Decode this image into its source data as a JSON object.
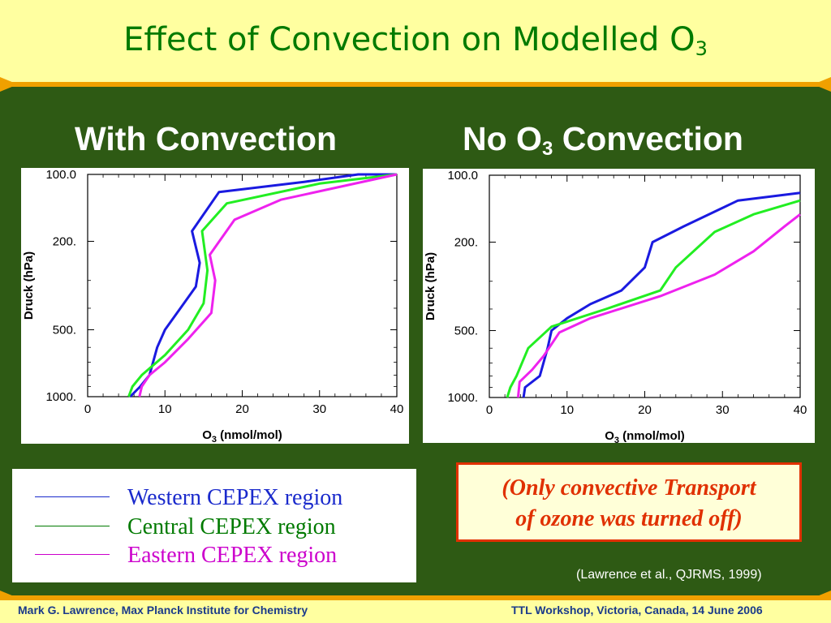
{
  "slide": {
    "title_main": "Effect of Convection on Modelled O",
    "title_sub": "3",
    "footer_left": "Mark G. Lawrence, Max Planck Institute for Chemistry",
    "footer_right": "TTL Workshop, Victoria, Canada, 14 June 2006",
    "citation": "(Lawrence et al., QJRMS, 1999)",
    "note_line1": "(Only convective Transport",
    "note_line2": "of ozone was turned off)"
  },
  "panels": {
    "left_title": "With Convection",
    "right_title_pre": "No O",
    "right_title_sub": "3",
    "right_title_post": " Convection"
  },
  "legend": {
    "items": [
      {
        "label": "Western CEPEX region",
        "color": "#1a2acc"
      },
      {
        "label": "Central CEPEX region",
        "color": "#007a00"
      },
      {
        "label": "Eastern CEPEX region",
        "color": "#cc00cc"
      }
    ]
  },
  "colors": {
    "western": "#1a1ae0",
    "central": "#22ee22",
    "eastern": "#ee22ee",
    "header_bg": "#ffffa0",
    "slide_bg": "#2e5a14",
    "accent": "#f0a000"
  },
  "chart_data": [
    {
      "type": "line",
      "title": "With Convection",
      "xlabel": "O3 (nmol/mol)",
      "ylabel": "Druck (hPa)",
      "xlim": [
        0,
        40
      ],
      "ylim": [
        1000,
        100
      ],
      "y_scale": "log",
      "x_ticks": [
        "0",
        "10",
        "20",
        "30",
        "40"
      ],
      "y_ticks": [
        "100.0",
        "200.",
        "500.",
        "1000."
      ],
      "series": [
        {
          "name": "Western CEPEX region",
          "color_key": "western",
          "points": [
            [
              5.5,
              1000
            ],
            [
              6.8,
              900
            ],
            [
              8,
              800
            ],
            [
              9,
              600
            ],
            [
              10,
              500
            ],
            [
              12,
              400
            ],
            [
              14,
              320
            ],
            [
              14.5,
              250
            ],
            [
              13.5,
              180
            ],
            [
              17,
              120
            ],
            [
              28,
              108
            ],
            [
              35,
              100
            ],
            [
              40,
              95
            ]
          ]
        },
        {
          "name": "Central CEPEX region",
          "color_key": "central",
          "points": [
            [
              5.3,
              1000
            ],
            [
              5.8,
              900
            ],
            [
              7,
              800
            ],
            [
              10,
              650
            ],
            [
              13,
              500
            ],
            [
              15,
              380
            ],
            [
              15.5,
              270
            ],
            [
              14.8,
              180
            ],
            [
              18,
              135
            ],
            [
              30,
              110
            ],
            [
              40,
              95
            ]
          ]
        },
        {
          "name": "Eastern CEPEX region",
          "color_key": "eastern",
          "points": [
            [
              6.7,
              1000
            ],
            [
              7,
              900
            ],
            [
              8,
              800
            ],
            [
              10,
              700
            ],
            [
              13,
              550
            ],
            [
              16,
              420
            ],
            [
              16.5,
              300
            ],
            [
              15.8,
              230
            ],
            [
              19,
              160
            ],
            [
              25,
              130
            ],
            [
              40,
              100
            ]
          ]
        }
      ]
    },
    {
      "type": "line",
      "title": "No O3 Convection",
      "xlabel": "O3 (nmol/mol)",
      "ylabel": "Druck (hPa)",
      "xlim": [
        0,
        40
      ],
      "ylim": [
        1000,
        100
      ],
      "y_scale": "log",
      "x_ticks": [
        "0",
        "10",
        "20",
        "30",
        "40"
      ],
      "y_ticks": [
        "100.0",
        "200.",
        "500.",
        "1000."
      ],
      "series": [
        {
          "name": "Western CEPEX region",
          "color_key": "western",
          "points": [
            [
              4.4,
              1000
            ],
            [
              4.6,
              900
            ],
            [
              6.5,
              800
            ],
            [
              7.5,
              600
            ],
            [
              8,
              500
            ],
            [
              10,
              440
            ],
            [
              13,
              380
            ],
            [
              17,
              330
            ],
            [
              20,
              260
            ],
            [
              21,
              200
            ],
            [
              25,
              170
            ],
            [
              32,
              130
            ],
            [
              40,
              120
            ]
          ]
        },
        {
          "name": "Central CEPEX region",
          "color_key": "central",
          "points": [
            [
              2.3,
              1000
            ],
            [
              2.7,
              900
            ],
            [
              3.5,
              800
            ],
            [
              5,
              600
            ],
            [
              8,
              480
            ],
            [
              15,
              400
            ],
            [
              22,
              330
            ],
            [
              24,
              260
            ],
            [
              29,
              180
            ],
            [
              34,
              150
            ],
            [
              40,
              130
            ]
          ]
        },
        {
          "name": "Eastern CEPEX region",
          "color_key": "eastern",
          "points": [
            [
              3.7,
              1000
            ],
            [
              3.9,
              850
            ],
            [
              5.5,
              750
            ],
            [
              7,
              650
            ],
            [
              9,
              510
            ],
            [
              13,
              440
            ],
            [
              22,
              350
            ],
            [
              29,
              280
            ],
            [
              34,
              220
            ],
            [
              38,
              170
            ],
            [
              40,
              150
            ]
          ]
        }
      ]
    }
  ]
}
